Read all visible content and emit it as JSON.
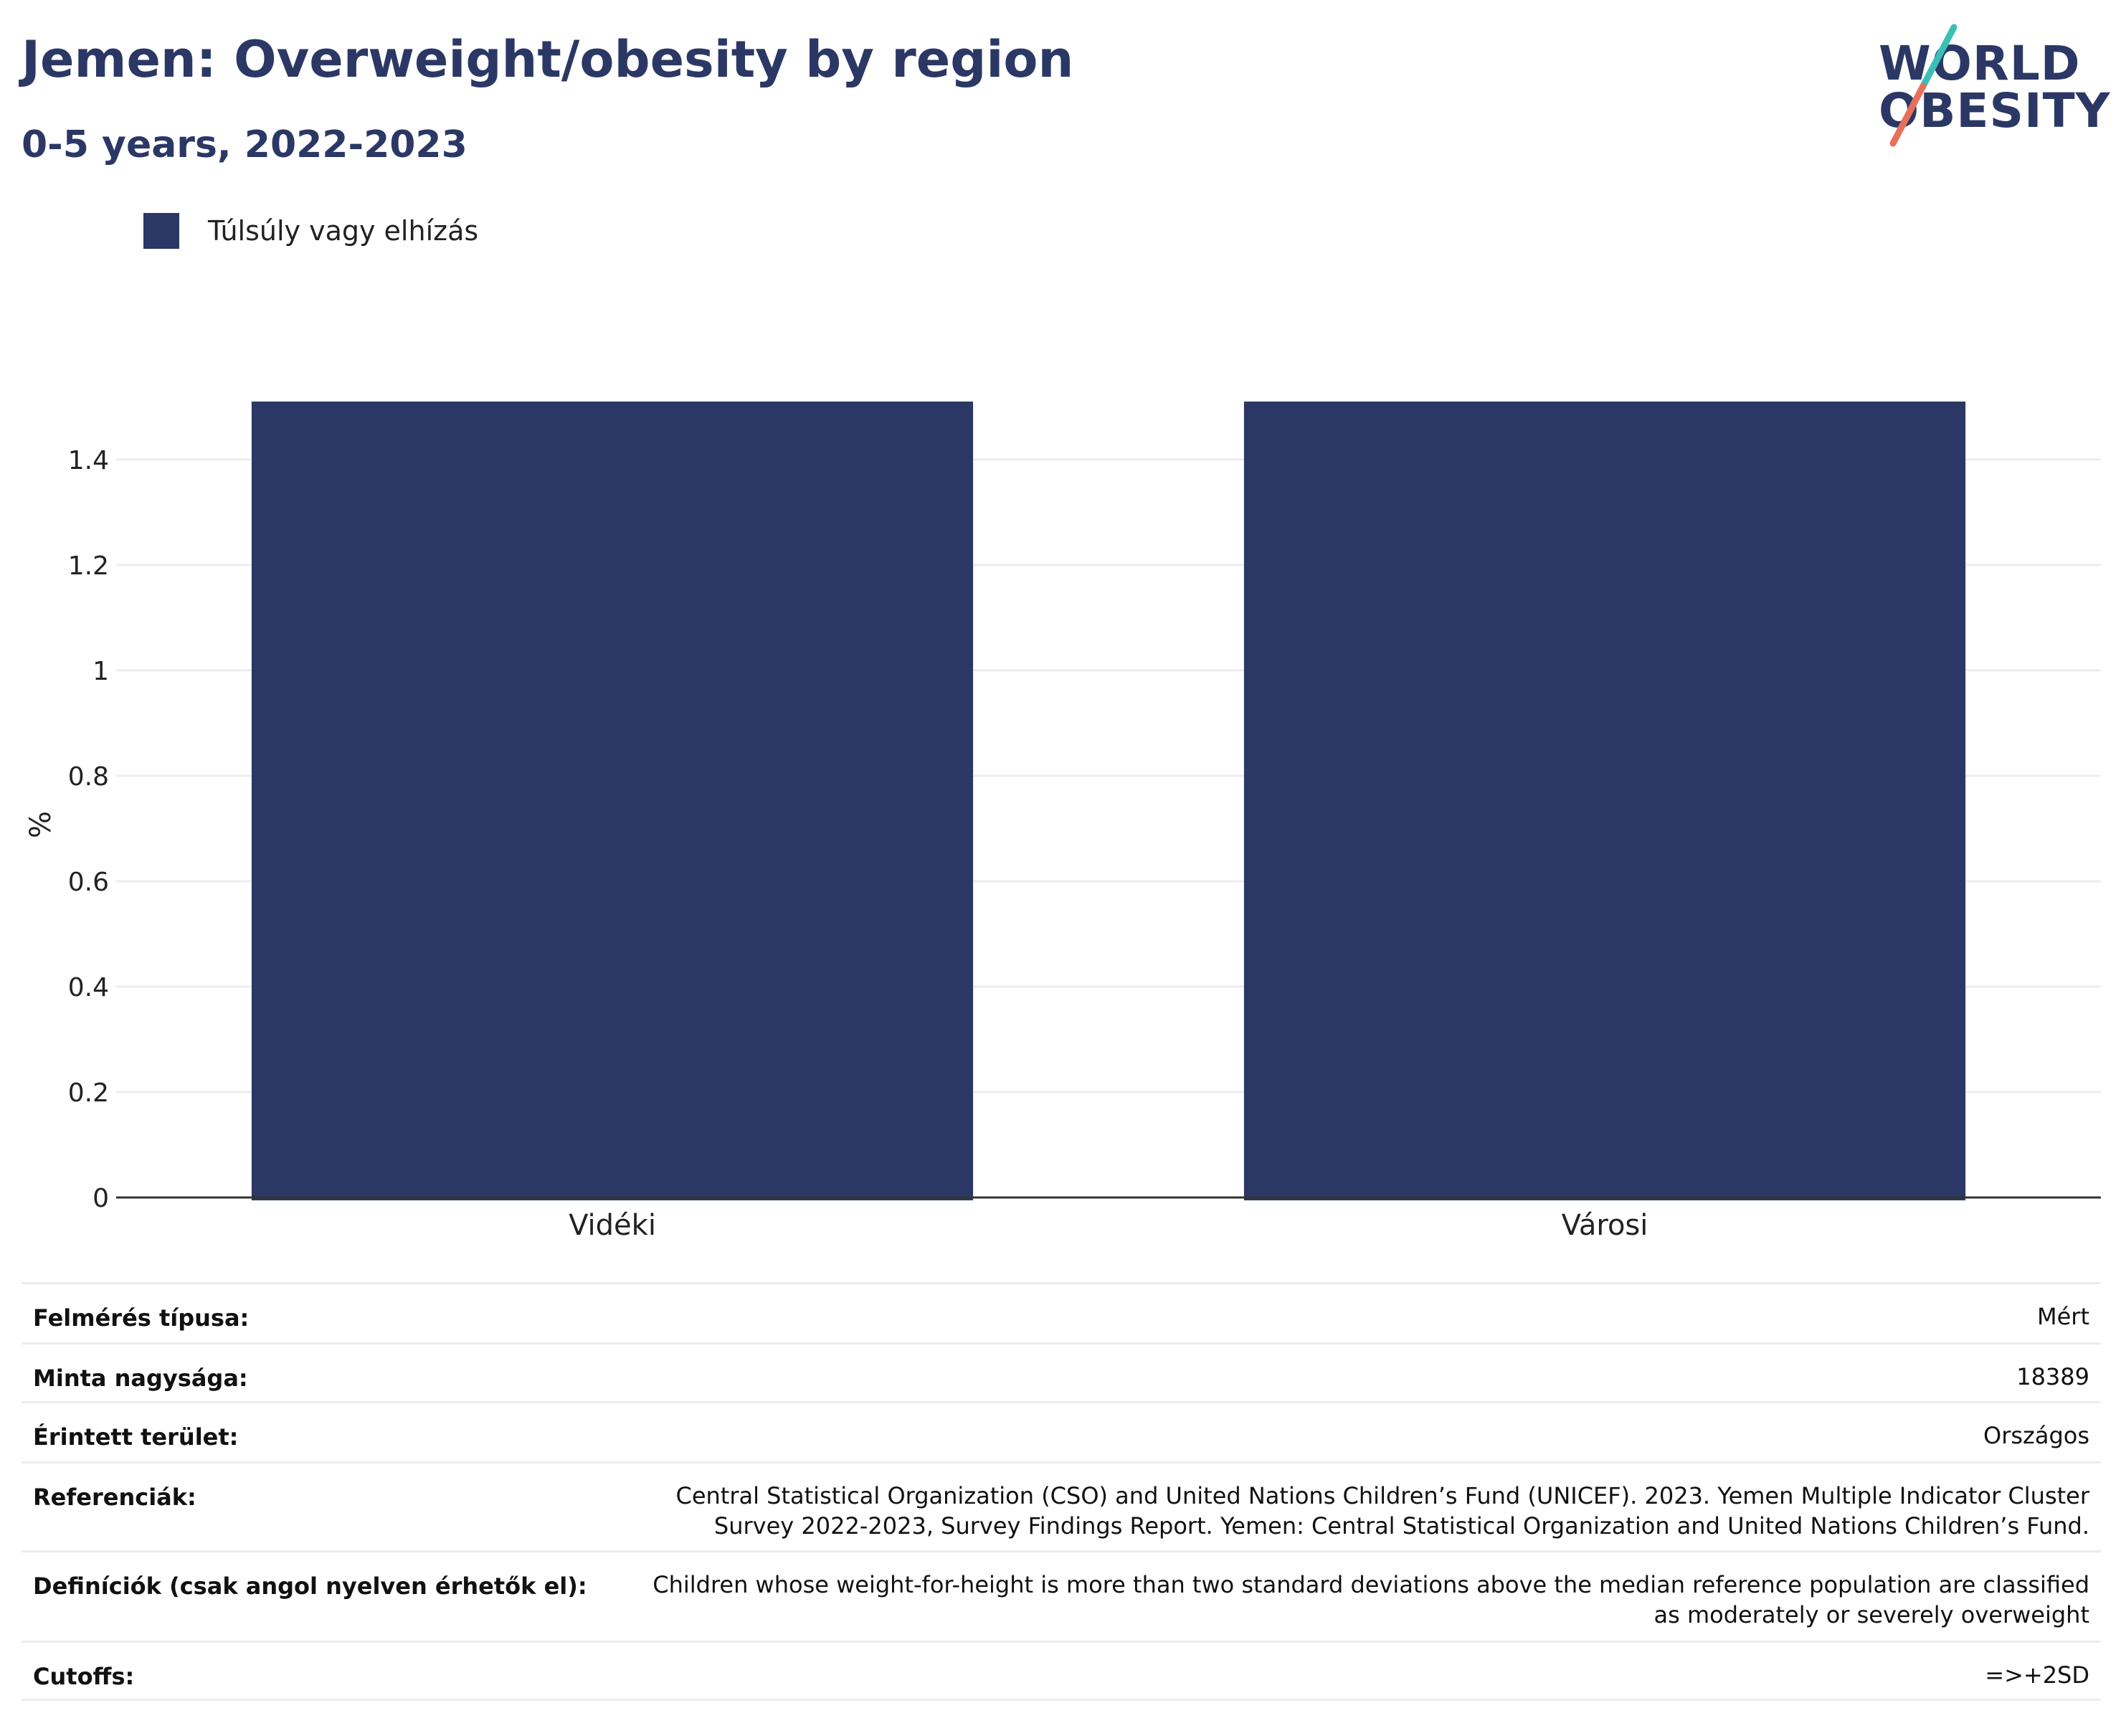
{
  "header": {
    "title": "Jemen: Overweight/obesity by region",
    "subtitle": "0-5 years, 2022-2023"
  },
  "logo": {
    "line1": "WORLD",
    "line2": "OBESITY",
    "colors": {
      "text": "#2b3865",
      "teal": "#3bbfb6",
      "coral": "#e8705a"
    }
  },
  "colors": {
    "bar": "#2b3865",
    "grid": "#ecedf2",
    "axis": "#333333"
  },
  "chart_data": {
    "type": "bar",
    "title": "Jemen: Overweight/obesity by region",
    "subtitle": "0-5 years, 2022-2023",
    "categories": [
      "Vidéki",
      "Városi"
    ],
    "series": [
      {
        "name": "Túlsúly vagy elhízás",
        "values": [
          1.51,
          1.51
        ],
        "color": "#2b3865"
      }
    ],
    "xlabel": "",
    "ylabel": "%",
    "ylim": [
      0,
      1.51
    ],
    "yticks": [
      0,
      0.2,
      0.4,
      0.6,
      0.8,
      1,
      1.2,
      1.4
    ],
    "ytick_labels": [
      "0",
      "0.2",
      "0.4",
      "0.6",
      "0.8",
      "1",
      "1.2",
      "1.4"
    ],
    "grid": true,
    "legend": "top-left"
  },
  "info": [
    {
      "label": "Felmérés típusa:",
      "value": "Mért"
    },
    {
      "label": "Minta nagysága:",
      "value": "18389"
    },
    {
      "label": "Érintett terület:",
      "value": "Országos"
    },
    {
      "label": "Referenciák:",
      "value": "Central Statistical Organization (CSO) and United Nations Children’s Fund (UNICEF). 2023. Yemen Multiple Indicator Cluster Survey 2022-2023, Survey Findings Report. Yemen: Central Statistical Organization and United Nations Children’s Fund."
    },
    {
      "label": "Definíciók (csak angol nyelven érhetők el):",
      "value": "Children whose weight-for-height is more than two standard deviations above the median reference population are classified as moderately or severely overweight"
    },
    {
      "label": "Cutoffs:",
      "value": "=>+2SD"
    }
  ]
}
